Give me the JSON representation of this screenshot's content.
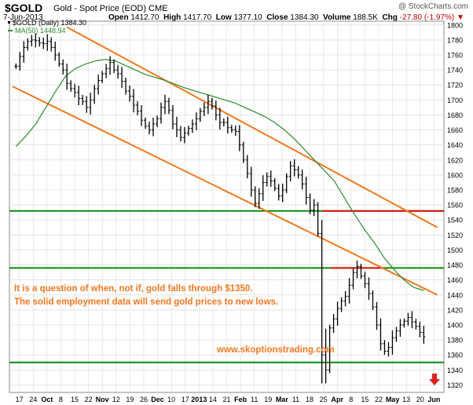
{
  "header": {
    "symbol": "$GOLD",
    "name": "Gold - Spot Price (EOD)",
    "exchange": "CME",
    "date": "7-Jun-2013",
    "open_label": "Open",
    "open": "1412.70",
    "high_label": "High",
    "high": "1417.70",
    "low_label": "Low",
    "low": "1377.10",
    "close_label": "Close",
    "close": "1384.30",
    "volume_label": "Volume",
    "volume": "188.5K",
    "chg_label": "Chg",
    "chg": "-27.80 (-1.97%)",
    "watermark": "@ StockCharts.com"
  },
  "legend": {
    "price": "$GOLD (Daily) 1384.30",
    "ma": "MA(50) 1448.94"
  },
  "annotations": {
    "line1": "It is a question of when, not if, gold falls through $1350.",
    "line2": "The solid employment data will send gold prices to new lows.",
    "url": "www.skoptionstrading.com"
  },
  "colors": {
    "price": "#000000",
    "ma": "#2e8b2e",
    "channel": "#f07820",
    "support": "#0a8a0a",
    "resistance": "#e01010",
    "annotation": "#f07820",
    "down_arrow": "#e02020",
    "grid": "#d4d4d4"
  },
  "chart_data": {
    "type": "ohlc",
    "y_axis_side": "right",
    "ylim": [
      1310,
      1805
    ],
    "y_ticks": [
      1320,
      1340,
      1360,
      1380,
      1400,
      1420,
      1440,
      1460,
      1480,
      1500,
      1520,
      1540,
      1560,
      1580,
      1600,
      1620,
      1640,
      1660,
      1680,
      1700,
      1720,
      1740,
      1760,
      1780,
      1800
    ],
    "x_tick_labels": [
      "17",
      "24",
      "Oct",
      "8",
      "15",
      "22",
      "Nov",
      "12",
      "19",
      "26",
      "Dec",
      "10",
      "17",
      "2013",
      "14",
      "21",
      "Feb",
      "11",
      "19",
      "Mar",
      "11",
      "18",
      "25",
      "Apr",
      "8",
      "15",
      "22",
      "May",
      "13",
      "20",
      "Jun"
    ],
    "x_tick_bold": [
      "Oct",
      "Nov",
      "Dec",
      "2013",
      "Feb",
      "Mar",
      "Apr",
      "May",
      "Jun"
    ],
    "close_series": [
      1745,
      1758,
      1770,
      1778,
      1780,
      1779,
      1776,
      1775,
      1778,
      1770,
      1760,
      1748,
      1740,
      1722,
      1715,
      1710,
      1702,
      1698,
      1690,
      1700,
      1715,
      1726,
      1735,
      1742,
      1750,
      1740,
      1735,
      1725,
      1712,
      1705,
      1693,
      1685,
      1673,
      1665,
      1660,
      1668,
      1675,
      1690,
      1698,
      1686,
      1668,
      1660,
      1650,
      1656,
      1662,
      1668,
      1675,
      1685,
      1690,
      1698,
      1692,
      1680,
      1670,
      1670,
      1663,
      1660,
      1658,
      1640,
      1620,
      1602,
      1580,
      1562,
      1575,
      1590,
      1598,
      1592,
      1582,
      1572,
      1580,
      1598,
      1612,
      1607,
      1600,
      1588,
      1570,
      1553,
      1560,
      1522,
      1360,
      1340,
      1396,
      1408,
      1422,
      1432,
      1438,
      1453,
      1470,
      1478,
      1465,
      1455,
      1442,
      1424,
      1400,
      1375,
      1365,
      1370,
      1383,
      1392,
      1400,
      1405,
      1410,
      1404,
      1398,
      1390,
      1384
    ],
    "ma50_series": [
      1638,
      1652,
      1668,
      1690,
      1712,
      1732,
      1742,
      1748,
      1752,
      1754,
      1752,
      1746,
      1740,
      1734,
      1730,
      1726,
      1721,
      1716,
      1712,
      1708,
      1704,
      1700,
      1696,
      1690,
      1684,
      1678,
      1670,
      1660,
      1648,
      1634,
      1620,
      1606,
      1592,
      1570,
      1548,
      1528,
      1510,
      1490,
      1474,
      1460,
      1450,
      1446
    ],
    "ma50_start_index": 0,
    "channel_upper": [
      {
        "t": 16,
        "y": 1797
      },
      {
        "t": 125,
        "y": 1530
      }
    ],
    "channel_lower": [
      {
        "t": 0,
        "y": 1718
      },
      {
        "t": 125,
        "y": 1440
      }
    ],
    "horizontal_levels": [
      {
        "y": 1552,
        "color_key": "support",
        "from": 0,
        "to": 1
      },
      {
        "y": 1552,
        "color_key": "resistance",
        "from": 0.72,
        "to": 1
      },
      {
        "y": 1476,
        "color_key": "support",
        "from": 0,
        "to": 1
      },
      {
        "y": 1476,
        "color_key": "resistance",
        "from": 0.74,
        "to": 0.86
      },
      {
        "y": 1350,
        "color_key": "support",
        "from": 0,
        "to": 1
      }
    ]
  }
}
